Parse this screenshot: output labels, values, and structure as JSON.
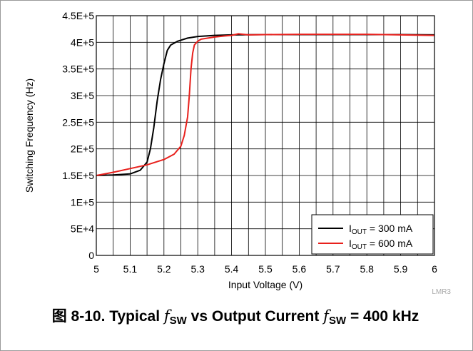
{
  "chart_data": {
    "type": "line",
    "title": "",
    "xlabel": "Input Voltage (V)",
    "ylabel": "Switching Frequency (Hz)",
    "xlim": [
      5,
      6
    ],
    "ylim": [
      0,
      450000
    ],
    "x_ticks": [
      5,
      5.1,
      5.2,
      5.3,
      5.4,
      5.5,
      5.6,
      5.7,
      5.8,
      5.9,
      6
    ],
    "x_tick_labels": [
      "5",
      "5.1",
      "5.2",
      "5.3",
      "5.4",
      "5.5",
      "5.6",
      "5.7",
      "5.8",
      "5.9",
      "6"
    ],
    "y_ticks": [
      0,
      50000,
      100000,
      150000,
      200000,
      250000,
      300000,
      350000,
      400000,
      450000
    ],
    "y_tick_labels": [
      "0",
      "5E+4",
      "1E+5",
      "1.5E+5",
      "2E+5",
      "2.5E+5",
      "3E+5",
      "3.5E+5",
      "4E+5",
      "4.5E+5"
    ],
    "grid": true,
    "legend_position": "bottom-right",
    "series": [
      {
        "name_main": "I",
        "name_sub": "OUT",
        "name_rest": " = 300 mA",
        "color": "#000000",
        "x": [
          5.0,
          5.05,
          5.1,
          5.13,
          5.15,
          5.16,
          5.17,
          5.18,
          5.19,
          5.2,
          5.21,
          5.22,
          5.24,
          5.27,
          5.3,
          5.35,
          5.4,
          5.5,
          5.6,
          5.7,
          5.8,
          5.9,
          6.0
        ],
        "y": [
          150000,
          151000,
          153000,
          160000,
          175000,
          200000,
          240000,
          290000,
          330000,
          360000,
          385000,
          395000,
          402000,
          408000,
          411000,
          413000,
          414000,
          414500,
          414500,
          414500,
          414500,
          414500,
          414000
        ]
      },
      {
        "name_main": "I",
        "name_sub": "OUT",
        "name_rest": " = 600 mA",
        "color": "#e8201c",
        "x": [
          5.0,
          5.05,
          5.1,
          5.15,
          5.2,
          5.23,
          5.25,
          5.26,
          5.27,
          5.275,
          5.28,
          5.285,
          5.29,
          5.3,
          5.31,
          5.33,
          5.35,
          5.38,
          5.4,
          5.42,
          5.45,
          5.5,
          5.6,
          5.7,
          5.8,
          5.9,
          6.0
        ],
        "y": [
          150000,
          156000,
          163000,
          170000,
          180000,
          190000,
          205000,
          225000,
          260000,
          300000,
          350000,
          380000,
          395000,
          402000,
          406000,
          408000,
          410000,
          412000,
          413000,
          416000,
          414000,
          414500,
          415000,
          415000,
          415000,
          414000,
          413000
        ]
      }
    ]
  },
  "watermark": "LMR3",
  "caption": {
    "prefix": "图 8-10. Typical ",
    "f1": "f",
    "sub1": "SW",
    "middle": " vs Output Current ",
    "f2": "f",
    "sub2": "SW",
    "suffix": " = 400 kHz"
  }
}
